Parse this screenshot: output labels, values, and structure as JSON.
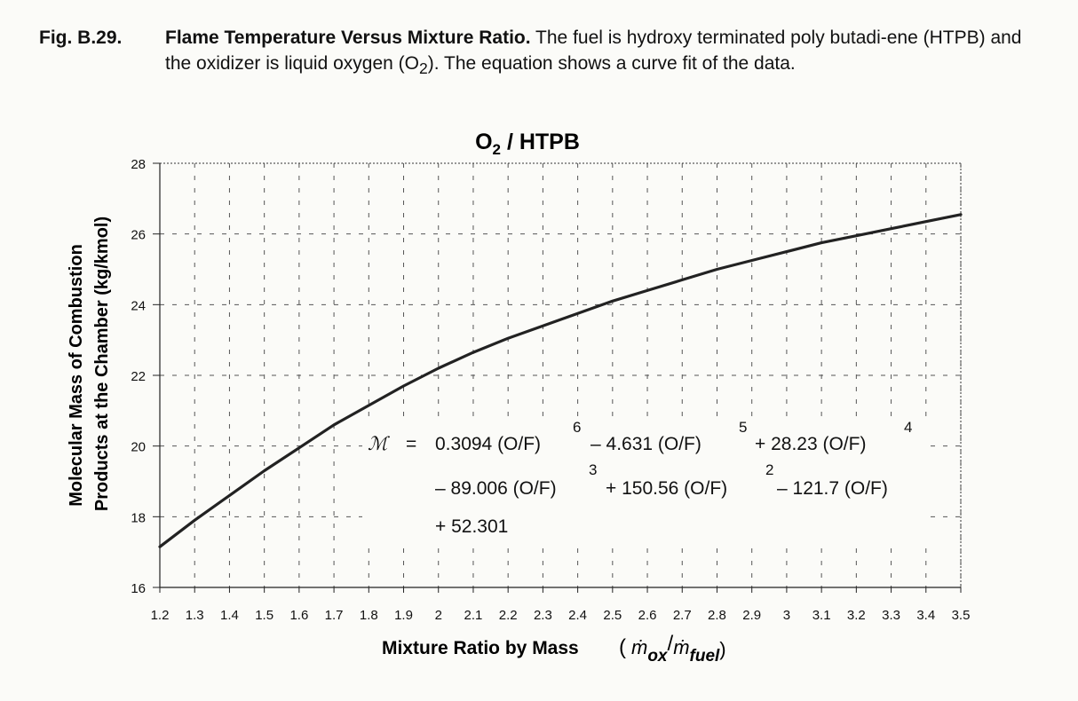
{
  "caption": {
    "number": "Fig. B.29.",
    "title": "Flame Temperature Versus Mixture Ratio.",
    "text_pre": " The fuel is hydroxy terminated poly butadi-ene (HTPB) and the oxidizer is liquid oxygen (O",
    "text_sub": "2",
    "text_post": "). The equation shows a curve fit of the data."
  },
  "equation": {
    "symbol": "ℳ",
    "equals": "=",
    "line1": [
      {
        "text": "0.3094 (O/F)",
        "exp": "6"
      },
      {
        "text": " – 4.631 (O/F)",
        "exp": "5"
      },
      {
        "text": " + 28.23 (O/F)",
        "exp": "4"
      }
    ],
    "line2": [
      {
        "text": "– 89.006 (O/F)",
        "exp": "3"
      },
      {
        "text": " + 150.56 (O/F)",
        "exp": "2"
      },
      {
        "text": " – 121.7 (O/F)",
        "exp": ""
      }
    ],
    "line3": "+ 52.301"
  },
  "chart_data": {
    "type": "line",
    "title": "O2 / HTPB",
    "title_main": "O",
    "title_sub": "2",
    "title_rest": " / HTPB",
    "xlabel": "Mixture Ratio by Mass",
    "xlabel_paren_open": "(",
    "xlabel_m1": "ṁ",
    "xlabel_sub1": "ox",
    "xlabel_slash": "/",
    "xlabel_m2": "ṁ",
    "xlabel_sub2": "fuel",
    "xlabel_paren_close": ")",
    "ylabel_line1": "Molecular Mass of Combustion",
    "ylabel_line2": "Products at the Chamber (kg/kmol)",
    "xlim": [
      1.2,
      3.5
    ],
    "ylim": [
      16,
      28
    ],
    "x_ticks": [
      "1.2",
      "1.3",
      "1.4",
      "1.5",
      "1.6",
      "1.7",
      "1.8",
      "1.9",
      "2",
      "2.1",
      "2.2",
      "2.3",
      "2.4",
      "2.5",
      "2.6",
      "2.7",
      "2.8",
      "2.9",
      "3",
      "3.1",
      "3.2",
      "3.3",
      "3.4",
      "3.5"
    ],
    "y_ticks": [
      "16",
      "18",
      "20",
      "22",
      "24",
      "26",
      "28"
    ],
    "grid": true,
    "series": [
      {
        "name": "",
        "color": "#222222",
        "x": [
          1.2,
          1.3,
          1.4,
          1.5,
          1.6,
          1.7,
          1.8,
          1.9,
          2.0,
          2.1,
          2.2,
          2.3,
          2.4,
          2.5,
          2.6,
          2.7,
          2.8,
          2.9,
          3.0,
          3.1,
          3.2,
          3.3,
          3.4,
          3.5
        ],
        "y": [
          17.15,
          17.9,
          18.6,
          19.3,
          19.95,
          20.6,
          21.15,
          21.7,
          22.2,
          22.65,
          23.05,
          23.4,
          23.75,
          24.1,
          24.4,
          24.7,
          25.0,
          25.25,
          25.5,
          25.75,
          25.95,
          26.15,
          26.35,
          26.55
        ]
      }
    ]
  }
}
